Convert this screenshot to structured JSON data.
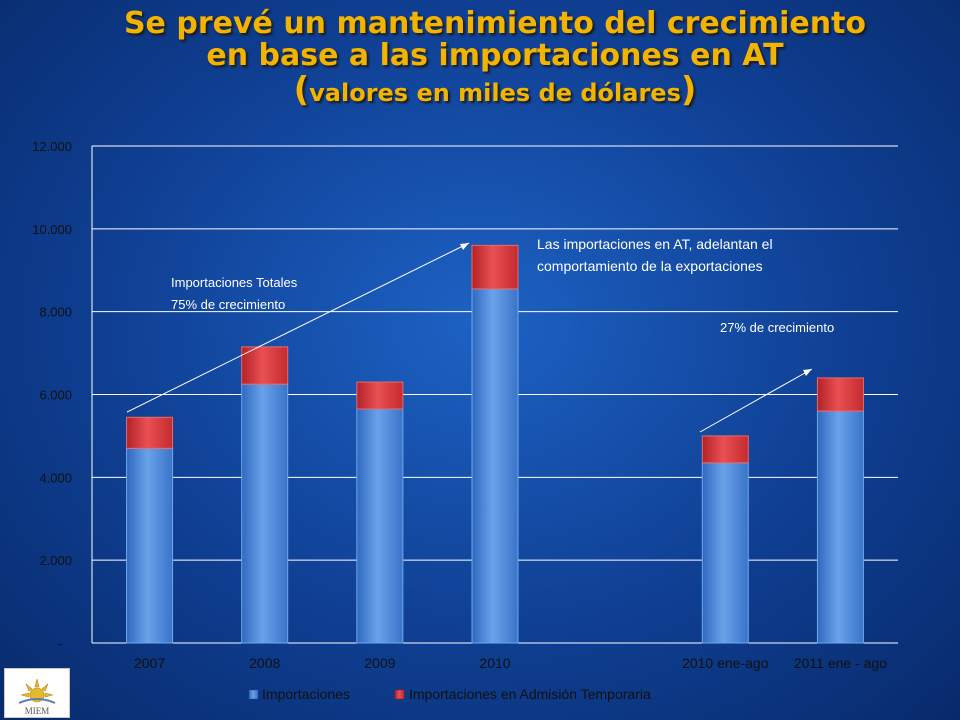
{
  "slide": {
    "title_line1": "Se prevé un mantenimiento del crecimiento",
    "title_line2": "en base a las importaciones en AT",
    "title_line3_open": "(",
    "title_line3_text": "valores en miles de dólares",
    "title_line3_close": ")",
    "logo_text": "MIEM"
  },
  "colors": {
    "series_blue": "#4a86d6",
    "series_red": "#d8363a",
    "grid": "#ffffff",
    "text_dark": "#111111"
  },
  "annotations": {
    "total_line1": "Importaciones Totales",
    "total_line2": "75% de crecimiento",
    "at_line1": "Las importaciones en AT, adelantan el",
    "at_line2": "comportamiento de la exportaciones",
    "growth_27": "27% de crecimiento"
  },
  "chart_data": {
    "type": "bar",
    "stacked": true,
    "categories": [
      "2007",
      "2008",
      "2009",
      "2010",
      "",
      "2010 ene-ago",
      "2011 ene - ago"
    ],
    "series": [
      {
        "name": "Importaciones",
        "values": [
          4700,
          6250,
          5650,
          8550,
          null,
          4350,
          5600
        ]
      },
      {
        "name": "Importaciones en Admisión Temporaria",
        "values": [
          750,
          900,
          650,
          1050,
          null,
          650,
          800
        ]
      }
    ],
    "ylim": [
      0,
      12000
    ],
    "yticks": [
      "-",
      "2.000",
      "4.000",
      "6.000",
      "8.000",
      "10.000",
      "12.000"
    ],
    "grid": true,
    "legend": "bottom"
  }
}
